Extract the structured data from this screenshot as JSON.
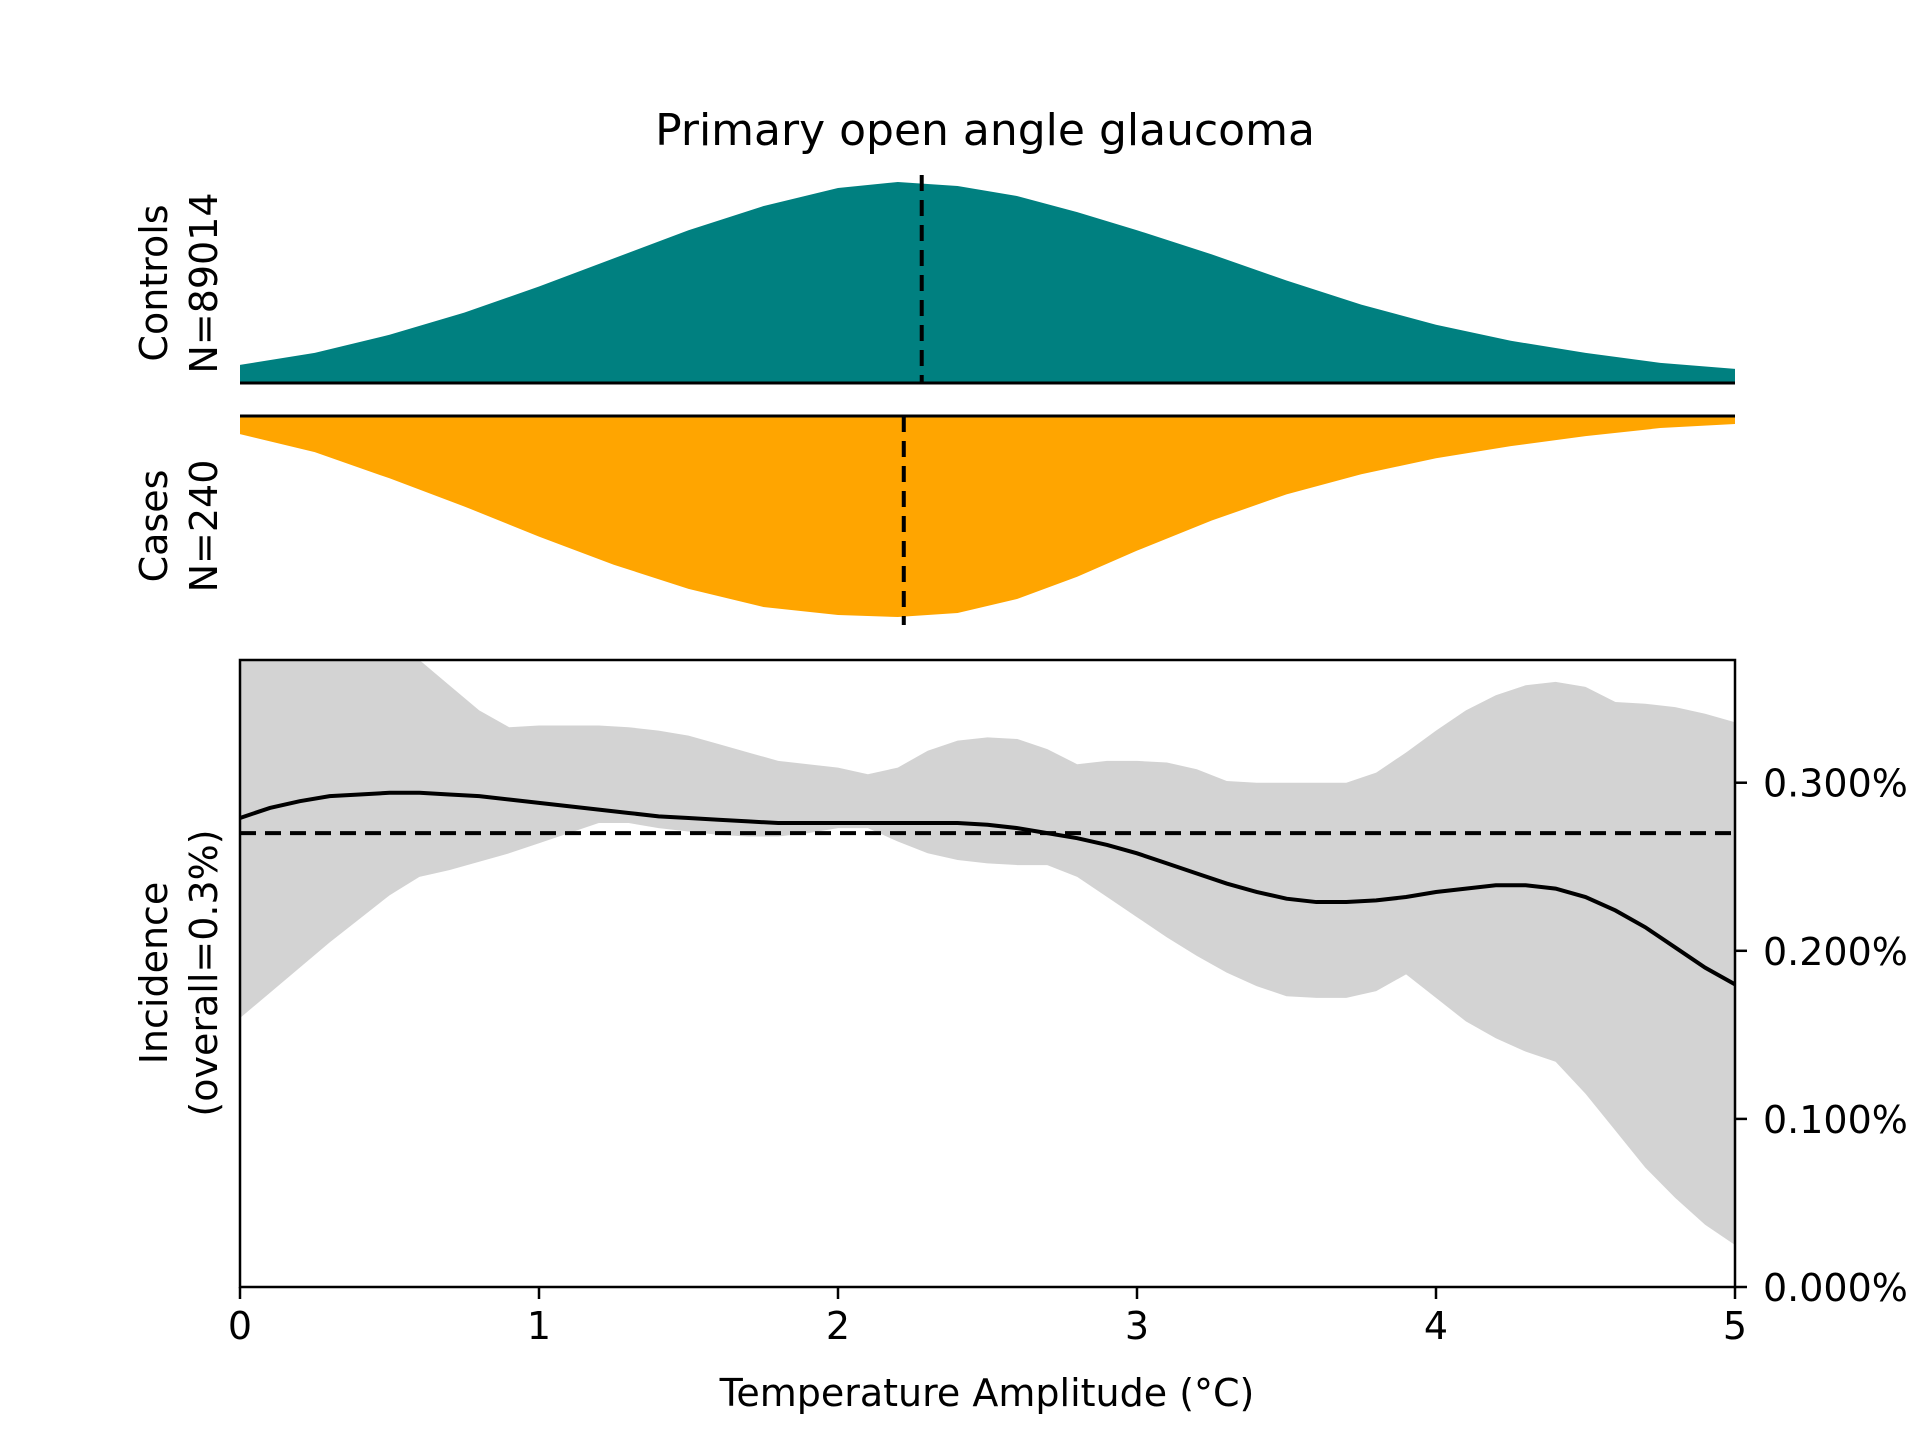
{
  "chart_data": {
    "type": "area",
    "title": "Primary open angle glaucoma",
    "xlabel": "Temperature Amplitude (°C)",
    "xlim": [
      0,
      5
    ],
    "x_ticks": [
      "0",
      "1",
      "2",
      "3",
      "4",
      "5"
    ],
    "controls": {
      "label_line1": "Controls",
      "label_line2": "N=89014",
      "color": "#008080",
      "median": 2.28,
      "density": [
        [
          0.0,
          0.09
        ],
        [
          0.25,
          0.15
        ],
        [
          0.5,
          0.24
        ],
        [
          0.75,
          0.35
        ],
        [
          1.0,
          0.48
        ],
        [
          1.25,
          0.62
        ],
        [
          1.5,
          0.76
        ],
        [
          1.75,
          0.88
        ],
        [
          2.0,
          0.97
        ],
        [
          2.2,
          1.0
        ],
        [
          2.4,
          0.98
        ],
        [
          2.6,
          0.93
        ],
        [
          2.8,
          0.85
        ],
        [
          3.0,
          0.76
        ],
        [
          3.25,
          0.64
        ],
        [
          3.5,
          0.51
        ],
        [
          3.75,
          0.39
        ],
        [
          4.0,
          0.29
        ],
        [
          4.25,
          0.21
        ],
        [
          4.5,
          0.15
        ],
        [
          4.75,
          0.1
        ],
        [
          5.0,
          0.07
        ]
      ]
    },
    "cases": {
      "label_line1": "Cases",
      "label_line2": "N=240",
      "color": "#FFA500",
      "median": 2.22,
      "density": [
        [
          0.0,
          0.09
        ],
        [
          0.25,
          0.18
        ],
        [
          0.5,
          0.31
        ],
        [
          0.75,
          0.45
        ],
        [
          1.0,
          0.6
        ],
        [
          1.25,
          0.74
        ],
        [
          1.5,
          0.86
        ],
        [
          1.75,
          0.95
        ],
        [
          2.0,
          0.99
        ],
        [
          2.2,
          1.0
        ],
        [
          2.4,
          0.98
        ],
        [
          2.6,
          0.91
        ],
        [
          2.8,
          0.8
        ],
        [
          3.0,
          0.67
        ],
        [
          3.25,
          0.52
        ],
        [
          3.5,
          0.39
        ],
        [
          3.75,
          0.29
        ],
        [
          4.0,
          0.21
        ],
        [
          4.25,
          0.15
        ],
        [
          4.5,
          0.1
        ],
        [
          4.75,
          0.06
        ],
        [
          5.0,
          0.04
        ]
      ]
    },
    "incidence": {
      "ylabel_line1": "Incidence",
      "ylabel_line2": "(overall=0.3%)",
      "ylim": [
        0,
        0.373
      ],
      "y_ticks": [
        {
          "value": 0.0,
          "label": "0.000%"
        },
        {
          "value": 0.1,
          "label": "0.100%"
        },
        {
          "value": 0.2,
          "label": "0.200%"
        },
        {
          "value": 0.3,
          "label": "0.300%"
        }
      ],
      "overall": 0.27,
      "line_color": "#000000",
      "band_color": "#d3d3d3",
      "x": [
        0.0,
        0.1,
        0.2,
        0.3,
        0.4,
        0.5,
        0.6,
        0.7,
        0.8,
        0.9,
        1.0,
        1.1,
        1.2,
        1.3,
        1.4,
        1.5,
        1.6,
        1.7,
        1.8,
        1.9,
        2.0,
        2.1,
        2.2,
        2.3,
        2.4,
        2.5,
        2.6,
        2.7,
        2.8,
        2.9,
        3.0,
        3.1,
        3.2,
        3.3,
        3.4,
        3.5,
        3.6,
        3.7,
        3.8,
        3.9,
        4.0,
        4.1,
        4.2,
        4.3,
        4.4,
        4.5,
        4.6,
        4.7,
        4.8,
        4.9,
        5.0
      ],
      "mean": [
        0.279,
        0.285,
        0.289,
        0.292,
        0.293,
        0.294,
        0.294,
        0.293,
        0.292,
        0.29,
        0.288,
        0.286,
        0.284,
        0.282,
        0.28,
        0.279,
        0.278,
        0.277,
        0.276,
        0.276,
        0.276,
        0.276,
        0.276,
        0.276,
        0.276,
        0.275,
        0.273,
        0.27,
        0.267,
        0.263,
        0.258,
        0.252,
        0.246,
        0.24,
        0.235,
        0.231,
        0.229,
        0.229,
        0.23,
        0.232,
        0.235,
        0.237,
        0.239,
        0.239,
        0.237,
        0.232,
        0.224,
        0.214,
        0.202,
        0.19,
        0.18
      ],
      "upper": [
        0.373,
        0.373,
        0.373,
        0.373,
        0.373,
        0.373,
        0.373,
        0.358,
        0.343,
        0.333,
        0.334,
        0.334,
        0.334,
        0.333,
        0.331,
        0.328,
        0.323,
        0.318,
        0.313,
        0.311,
        0.309,
        0.305,
        0.309,
        0.319,
        0.325,
        0.327,
        0.326,
        0.32,
        0.311,
        0.313,
        0.313,
        0.312,
        0.308,
        0.301,
        0.3,
        0.3,
        0.3,
        0.3,
        0.306,
        0.318,
        0.331,
        0.343,
        0.352,
        0.358,
        0.36,
        0.357,
        0.348,
        0.347,
        0.345,
        0.341,
        0.336
      ],
      "lower": [
        0.16,
        0.175,
        0.19,
        0.205,
        0.219,
        0.233,
        0.244,
        0.248,
        0.253,
        0.258,
        0.264,
        0.27,
        0.276,
        0.276,
        0.273,
        0.271,
        0.269,
        0.268,
        0.268,
        0.27,
        0.273,
        0.273,
        0.265,
        0.258,
        0.254,
        0.252,
        0.251,
        0.251,
        0.244,
        0.232,
        0.22,
        0.208,
        0.197,
        0.187,
        0.179,
        0.173,
        0.172,
        0.172,
        0.176,
        0.186,
        0.172,
        0.158,
        0.148,
        0.14,
        0.134,
        0.115,
        0.093,
        0.071,
        0.053,
        0.037,
        0.025
      ]
    }
  }
}
